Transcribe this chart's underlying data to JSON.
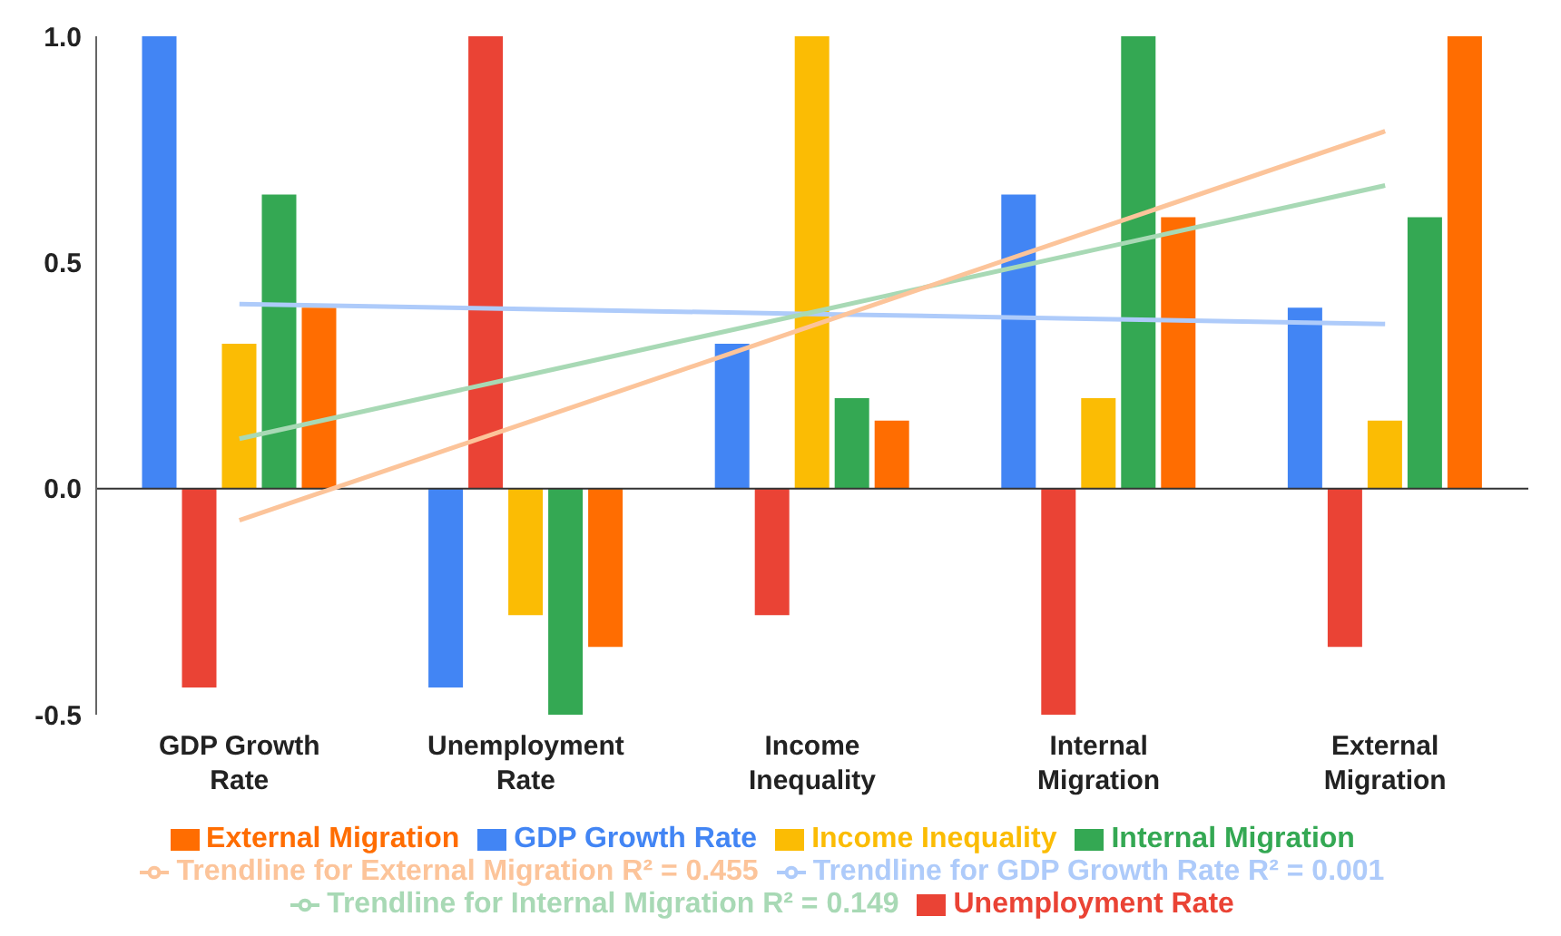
{
  "chart_data": {
    "type": "bar",
    "categories": [
      "GDP Growth Rate",
      "Unemployment Rate",
      "Income Inequality",
      "Internal Migration",
      "External Migration"
    ],
    "series": [
      {
        "name": "GDP Growth Rate",
        "color": "#4285f4",
        "values": [
          1.0,
          -0.44,
          0.32,
          0.65,
          0.4
        ]
      },
      {
        "name": "Trendline for GDP Growth Rate R² = 0.001",
        "type": "line",
        "color": "#aecbfa",
        "values": [
          0.408,
          0.397,
          0.386,
          0.375,
          0.364
        ]
      },
      {
        "name": "Unemployment Rate",
        "color": "#ea4335",
        "values": [
          -0.44,
          1.0,
          -0.28,
          -0.5,
          -0.35
        ]
      },
      {
        "name": "Income Inequality",
        "color": "#fbbc04",
        "values": [
          0.32,
          -0.28,
          1.0,
          0.2,
          0.15
        ]
      },
      {
        "name": "Internal Migration",
        "color": "#34a853",
        "values": [
          0.65,
          -0.5,
          0.2,
          1.0,
          0.6
        ]
      },
      {
        "name": "Trendline for Internal Migration R² = 0.149",
        "type": "line",
        "color": "#a8d9b5",
        "values": [
          0.11,
          0.25,
          0.39,
          0.53,
          0.67
        ]
      },
      {
        "name": "External Migration",
        "color": "#ff6d01",
        "values": [
          0.4,
          -0.35,
          0.15,
          0.6,
          1.0
        ]
      },
      {
        "name": "Trendline for External Migration R² = 0.455",
        "type": "line",
        "color": "#fcc49a",
        "values": [
          -0.07,
          0.145,
          0.36,
          0.575,
          0.79
        ]
      }
    ],
    "ylim": [
      -0.5,
      1.0
    ],
    "yticks": [
      {
        "value": -0.5,
        "label": "-0.5"
      },
      {
        "value": 0,
        "label": "0.0"
      },
      {
        "value": 0.5,
        "label": "0.5"
      },
      {
        "value": 1,
        "label": "1.0"
      }
    ],
    "ref_lines": [
      {
        "axis": "y",
        "value": 0,
        "label": null,
        "color": "#333333"
      }
    ],
    "grid": false,
    "legend": "bottom"
  }
}
